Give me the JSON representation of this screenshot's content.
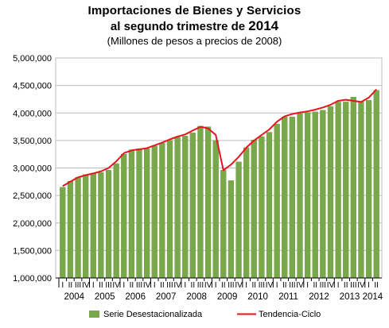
{
  "title": {
    "line1": "Importaciones de Bienes y Servicios",
    "line2": "al segundo trimestre de",
    "line2_year": "2014",
    "subtitle": "(Millones de pesos a precios de 2008)"
  },
  "colors": {
    "bar": "#78a84a",
    "bar_edge": "#5d8a35",
    "trend": "#e8141b",
    "grid": "#bdbdbd",
    "axis": "#000000"
  },
  "chart_data": {
    "type": "bar",
    "title": "Importaciones de Bienes y Servicios al segundo trimestre de 2014",
    "subtitle": "(Millones de pesos a precios de 2008)",
    "xlabel": "",
    "ylabel": "",
    "ylim": [
      1000000,
      5000000
    ],
    "yticks": [
      1000000,
      1500000,
      2000000,
      2500000,
      3000000,
      3500000,
      4000000,
      4500000,
      5000000
    ],
    "ytick_labels": [
      "1,000,000",
      "1,500,000",
      "2,000,000",
      "2,500,000",
      "3,000,000",
      "3,500,000",
      "4,000,000",
      "4,500,000",
      "5,000,000"
    ],
    "grid": true,
    "legend_position": "bottom",
    "quarter_labels": [
      "I",
      "II",
      "III",
      "IV"
    ],
    "years": [
      "2004",
      "2005",
      "2006",
      "2007",
      "2008",
      "2009",
      "2010",
      "2011",
      "2012",
      "2013",
      "2014"
    ],
    "categories": [
      "2004-I",
      "2004-II",
      "2004-III",
      "2004-IV",
      "2005-I",
      "2005-II",
      "2005-III",
      "2005-IV",
      "2006-I",
      "2006-II",
      "2006-III",
      "2006-IV",
      "2007-I",
      "2007-II",
      "2007-III",
      "2007-IV",
      "2008-I",
      "2008-II",
      "2008-III",
      "2008-IV",
      "2009-I",
      "2009-II",
      "2009-III",
      "2009-IV",
      "2010-I",
      "2010-II",
      "2010-III",
      "2010-IV",
      "2011-I",
      "2011-II",
      "2011-III",
      "2011-IV",
      "2012-I",
      "2012-II",
      "2012-III",
      "2012-IV",
      "2013-I",
      "2013-II",
      "2013-III",
      "2013-IV",
      "2014-I",
      "2014-II"
    ],
    "series": [
      {
        "name": "Serie Desestacionalizada",
        "type": "bar",
        "values": [
          2650000,
          2760000,
          2830000,
          2880000,
          2900000,
          2920000,
          2960000,
          3080000,
          3250000,
          3330000,
          3350000,
          3350000,
          3400000,
          3450000,
          3500000,
          3560000,
          3580000,
          3640000,
          3760000,
          3750000,
          3500000,
          2960000,
          2770000,
          3110000,
          3370000,
          3510000,
          3570000,
          3650000,
          3800000,
          3930000,
          3930000,
          3990000,
          4010000,
          4020000,
          4050000,
          4120000,
          4200000,
          4200000,
          4290000,
          4200000,
          4230000,
          4410000
        ]
      },
      {
        "name": "Tendencia-Ciclo",
        "type": "line",
        "values": [
          2670000,
          2750000,
          2830000,
          2870000,
          2900000,
          2940000,
          3000000,
          3120000,
          3270000,
          3320000,
          3340000,
          3360000,
          3410000,
          3460000,
          3520000,
          3570000,
          3610000,
          3680000,
          3750000,
          3720000,
          3600000,
          2960000,
          3060000,
          3200000,
          3370000,
          3500000,
          3600000,
          3700000,
          3840000,
          3940000,
          3980000,
          4010000,
          4030000,
          4060000,
          4100000,
          4150000,
          4220000,
          4240000,
          4220000,
          4200000,
          4280000,
          4430000
        ]
      }
    ]
  }
}
